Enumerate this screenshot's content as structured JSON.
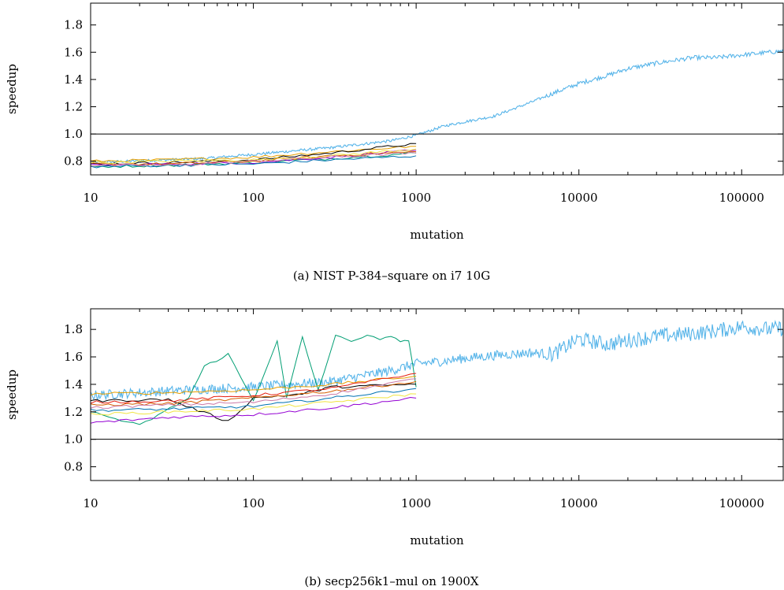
{
  "chart_data": [
    {
      "type": "line",
      "caption": "(a) NIST P-384–square on i7 10G",
      "xlabel": "mutation",
      "ylabel": "speedup",
      "xscale": "log",
      "xlim": [
        10,
        180000
      ],
      "ylim": [
        0.7,
        1.96
      ],
      "xticks": [
        10,
        100,
        1000,
        10000,
        100000
      ],
      "xtick_labels": [
        "10",
        "100",
        "1000",
        "10000",
        "100000"
      ],
      "yticks": [
        0.8,
        1.0,
        1.2,
        1.4,
        1.6,
        1.8
      ],
      "ytick_labels": [
        "0.8",
        "1.0",
        "1.2",
        "1.4",
        "1.6",
        "1.8"
      ],
      "reference_line": 1.0,
      "grid": false,
      "legend": "none",
      "series": [
        {
          "color": "#56B4E9",
          "x": [
            10,
            50,
            100,
            300,
            700,
            1000,
            1500,
            2000,
            3000,
            5000,
            7000,
            10000,
            15000,
            20000,
            30000,
            50000,
            70000,
            100000,
            150000,
            180000
          ],
          "y": [
            0.79,
            0.82,
            0.85,
            0.9,
            0.95,
            0.99,
            1.06,
            1.09,
            1.13,
            1.23,
            1.3,
            1.37,
            1.43,
            1.48,
            1.52,
            1.56,
            1.56,
            1.58,
            1.6,
            1.61
          ]
        },
        {
          "color": "#E69F00",
          "x": [
            10,
            30,
            100,
            300,
            1000
          ],
          "y": [
            0.8,
            0.81,
            0.83,
            0.87,
            0.91
          ]
        },
        {
          "color": "#009E73",
          "x": [
            10,
            30,
            100,
            300,
            1000
          ],
          "y": [
            0.76,
            0.77,
            0.79,
            0.82,
            0.86
          ]
        },
        {
          "color": "#000000",
          "x": [
            10,
            30,
            100,
            300,
            1000
          ],
          "y": [
            0.78,
            0.79,
            0.81,
            0.86,
            0.93
          ]
        },
        {
          "color": "#9400D3",
          "x": [
            10,
            30,
            100,
            300,
            1000
          ],
          "y": [
            0.77,
            0.78,
            0.79,
            0.83,
            0.88
          ]
        },
        {
          "color": "#D55E00",
          "x": [
            10,
            30,
            100,
            300,
            1000
          ],
          "y": [
            0.78,
            0.78,
            0.8,
            0.84,
            0.87
          ]
        },
        {
          "color": "#0072B2",
          "x": [
            10,
            30,
            100,
            300,
            1000
          ],
          "y": [
            0.76,
            0.77,
            0.78,
            0.81,
            0.84
          ]
        },
        {
          "color": "#F0E442",
          "x": [
            10,
            30,
            100,
            300,
            1000
          ],
          "y": [
            0.79,
            0.8,
            0.81,
            0.84,
            0.89
          ]
        },
        {
          "color": "#CC79A7",
          "x": [
            10,
            30,
            100,
            300,
            1000
          ],
          "y": [
            0.77,
            0.77,
            0.8,
            0.83,
            0.86
          ]
        }
      ]
    },
    {
      "type": "line",
      "caption": "(b) secp256k1–mul on 1900X",
      "xlabel": "mutation",
      "ylabel": "speedup",
      "xscale": "log",
      "xlim": [
        10,
        180000
      ],
      "ylim": [
        0.7,
        1.95
      ],
      "xticks": [
        10,
        100,
        1000,
        10000,
        100000
      ],
      "xtick_labels": [
        "10",
        "100",
        "1000",
        "10000",
        "100000"
      ],
      "yticks": [
        0.8,
        1.0,
        1.2,
        1.4,
        1.6,
        1.8
      ],
      "ytick_labels": [
        "0.8",
        "1.0",
        "1.2",
        "1.4",
        "1.6",
        "1.8"
      ],
      "reference_line": 1.0,
      "grid": false,
      "legend": "none",
      "series": [
        {
          "color": "#56B4E9",
          "x": [
            10,
            40,
            100,
            300,
            700,
            1000,
            1500,
            2000,
            3000,
            5000,
            7000,
            10000,
            15000,
            20000,
            30000,
            50000,
            70000,
            100000,
            150000,
            180000
          ],
          "y": [
            1.32,
            1.36,
            1.38,
            1.42,
            1.5,
            1.55,
            1.57,
            1.59,
            1.61,
            1.63,
            1.62,
            1.73,
            1.69,
            1.72,
            1.75,
            1.77,
            1.79,
            1.82,
            1.8,
            1.81
          ]
        },
        {
          "color": "#009E73",
          "x": [
            10,
            20,
            40,
            50,
            70,
            100,
            140,
            160,
            200,
            250,
            320,
            400,
            500,
            600,
            700,
            800,
            900,
            1000
          ],
          "y": [
            1.2,
            1.1,
            1.3,
            1.53,
            1.62,
            1.28,
            1.72,
            1.3,
            1.74,
            1.36,
            1.75,
            1.72,
            1.75,
            1.73,
            1.74,
            1.72,
            1.72,
            1.38
          ]
        },
        {
          "color": "#E69F00",
          "x": [
            10,
            30,
            100,
            300,
            1000
          ],
          "y": [
            1.33,
            1.34,
            1.36,
            1.4,
            1.46
          ]
        },
        {
          "color": "#000000",
          "x": [
            10,
            30,
            70,
            100,
            200,
            300,
            1000
          ],
          "y": [
            1.28,
            1.29,
            1.13,
            1.3,
            1.33,
            1.38,
            1.4
          ]
        },
        {
          "color": "#9400D3",
          "x": [
            10,
            30,
            100,
            300,
            1000
          ],
          "y": [
            1.12,
            1.16,
            1.18,
            1.23,
            1.3
          ]
        },
        {
          "color": "#D55E00",
          "x": [
            10,
            30,
            100,
            300,
            1000
          ],
          "y": [
            1.25,
            1.26,
            1.3,
            1.35,
            1.42
          ]
        },
        {
          "color": "#0072B2",
          "x": [
            10,
            30,
            100,
            300,
            1000
          ],
          "y": [
            1.21,
            1.22,
            1.24,
            1.3,
            1.37
          ]
        },
        {
          "color": "#F0E442",
          "x": [
            10,
            30,
            100,
            300,
            1000
          ],
          "y": [
            1.18,
            1.2,
            1.22,
            1.27,
            1.33
          ]
        },
        {
          "color": "#CC79A7",
          "x": [
            10,
            30,
            100,
            300,
            1000
          ],
          "y": [
            1.23,
            1.25,
            1.27,
            1.33,
            1.44
          ]
        },
        {
          "color": "#E51E10",
          "x": [
            10,
            30,
            100,
            300,
            1000
          ],
          "y": [
            1.27,
            1.28,
            1.32,
            1.37,
            1.48
          ]
        }
      ]
    }
  ]
}
